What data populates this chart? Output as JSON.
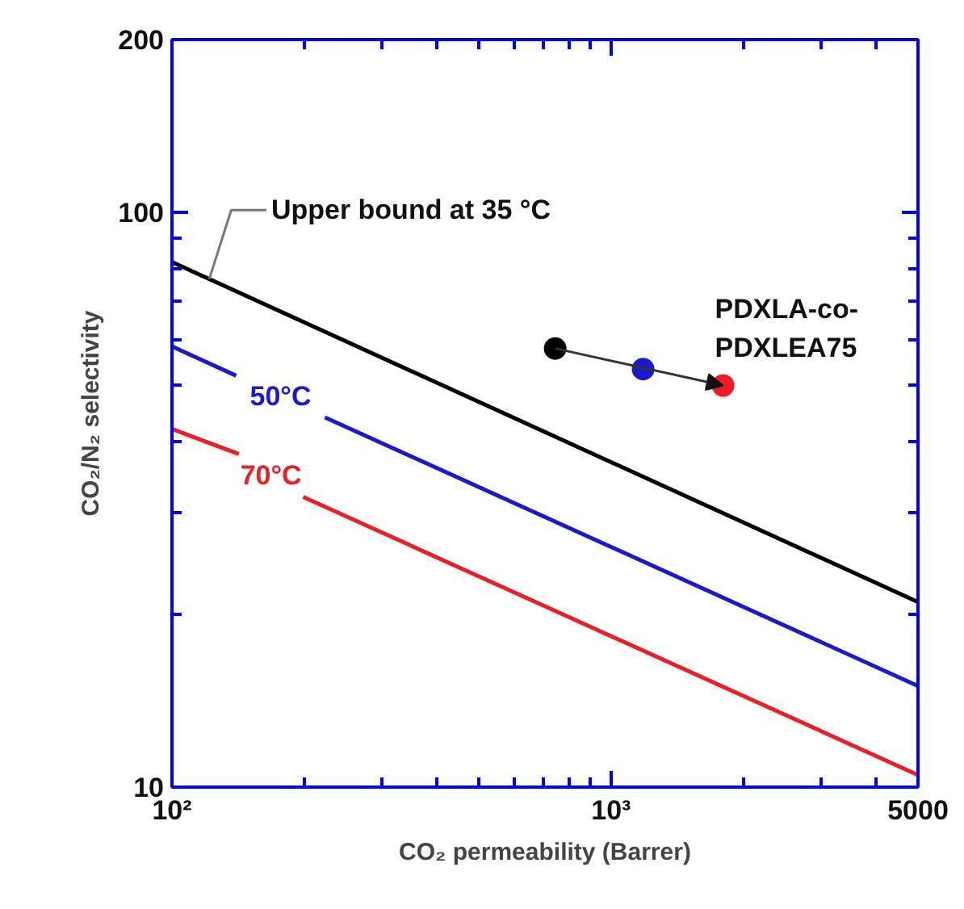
{
  "chart_data": {
    "type": "line",
    "xlabel": "CO₂ permeability (Barrer)",
    "ylabel": "CO₂/N₂ selectivity",
    "log": "xy",
    "xlim": [
      100,
      5000
    ],
    "ylim": [
      10,
      200
    ],
    "xticks": [
      {
        "value": 100,
        "label": "10²"
      },
      {
        "value": 1000,
        "label": "10³"
      },
      5000
    ],
    "yticks": [
      10,
      100,
      200
    ],
    "grid": false,
    "marker": "none",
    "line_style": "solid",
    "series": [
      {
        "name": "Upper bound at 35 °C",
        "color": "#000000",
        "x": [
          100,
          5000
        ],
        "values": [
          82,
          21
        ]
      },
      {
        "name": "50°C",
        "color": "#1a1acc",
        "x": [
          100,
          140,
          180,
          223,
          5000
        ],
        "values": [
          58.5,
          52,
          null,
          44,
          15
        ]
      },
      {
        "name": "70°C",
        "color": "#e8202a",
        "x": [
          100,
          142,
          170,
          199,
          5000
        ],
        "values": [
          42,
          38,
          null,
          32,
          10.5
        ]
      },
      {
        "type": "scatter",
        "marker": "circle",
        "x": [
          746,
          1183,
          1799
        ],
        "values": [
          58,
          53.4,
          50
        ],
        "colors": [
          "#000000",
          "#1a1acc",
          "#ee1c24"
        ]
      }
    ],
    "annotations": [
      {
        "text": "PDXLA-co-\nPDXLEA75",
        "x": 1799,
        "y": 50
      }
    ]
  }
}
